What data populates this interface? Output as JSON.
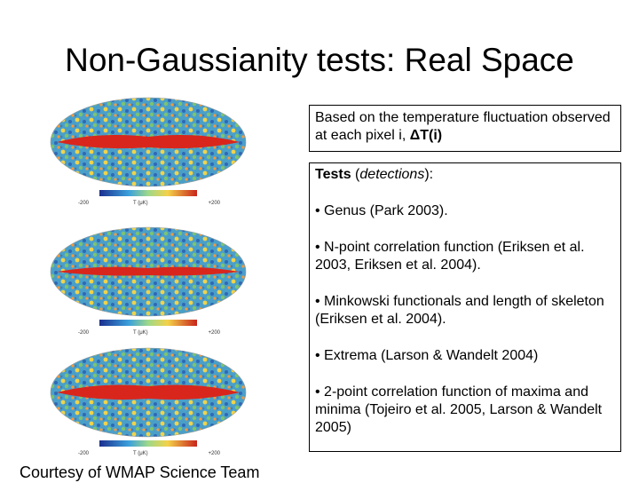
{
  "slide": {
    "title": "Non-Gaussianity tests: Real Space"
  },
  "maps": [
    {
      "scale_min": "-200",
      "scale_unit": "T (μK)",
      "scale_max": "+200"
    },
    {
      "scale_min": "-200",
      "scale_unit": "T (μK)",
      "scale_max": "+200"
    },
    {
      "scale_min": "-200",
      "scale_unit": "T (μK)",
      "scale_max": "+200"
    }
  ],
  "intro_box": {
    "text_prefix": "Based on the temperature fluctuation observed at each pixel i, ",
    "symbol": "ΔT(i)"
  },
  "tests_box": {
    "heading_bold": "Tests",
    "heading_italic": "detections",
    "items": [
      "• Genus (Park 2003).",
      "• N-point correlation function (Eriksen et al. 2003, Eriksen et al. 2004).",
      "• Minkowski functionals and length of skeleton (Eriksen et al. 2004).",
      "• Extrema (Larson & Wandelt 2004)",
      "• 2-point correlation function of maxima and minima (Tojeiro et al. 2005, Larson & Wandelt 2005)"
    ]
  },
  "credit": "Courtesy of WMAP Science Team"
}
